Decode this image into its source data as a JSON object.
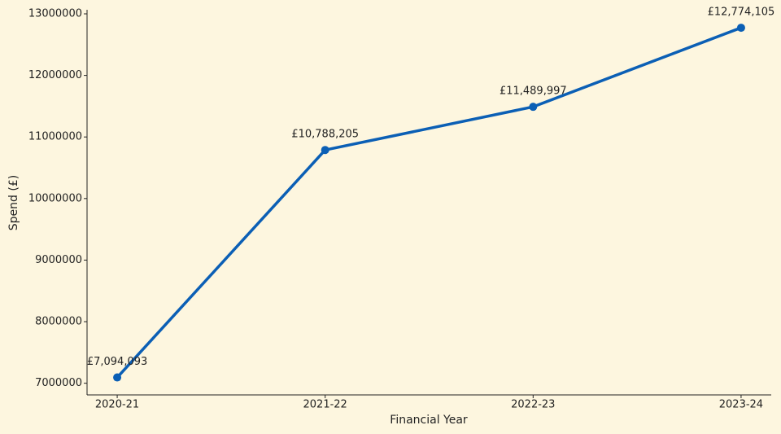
{
  "chart_data": {
    "type": "line",
    "x_label": "Financial Year",
    "y_label": "Spend (£)",
    "categories": [
      "2020-21",
      "2021-22",
      "2022-23",
      "2023-24"
    ],
    "values": [
      7094093,
      10788205,
      11489997,
      12774105
    ],
    "value_labels": [
      "£7,094,093",
      "£10,788,205",
      "£11,489,997",
      "£12,774,105"
    ],
    "color": "#0b5fb5",
    "ylim": [
      6810092,
      13058106
    ],
    "yticks": [
      7000000,
      8000000,
      9000000,
      10000000,
      11000000,
      12000000,
      13000000
    ],
    "grid": false
  }
}
